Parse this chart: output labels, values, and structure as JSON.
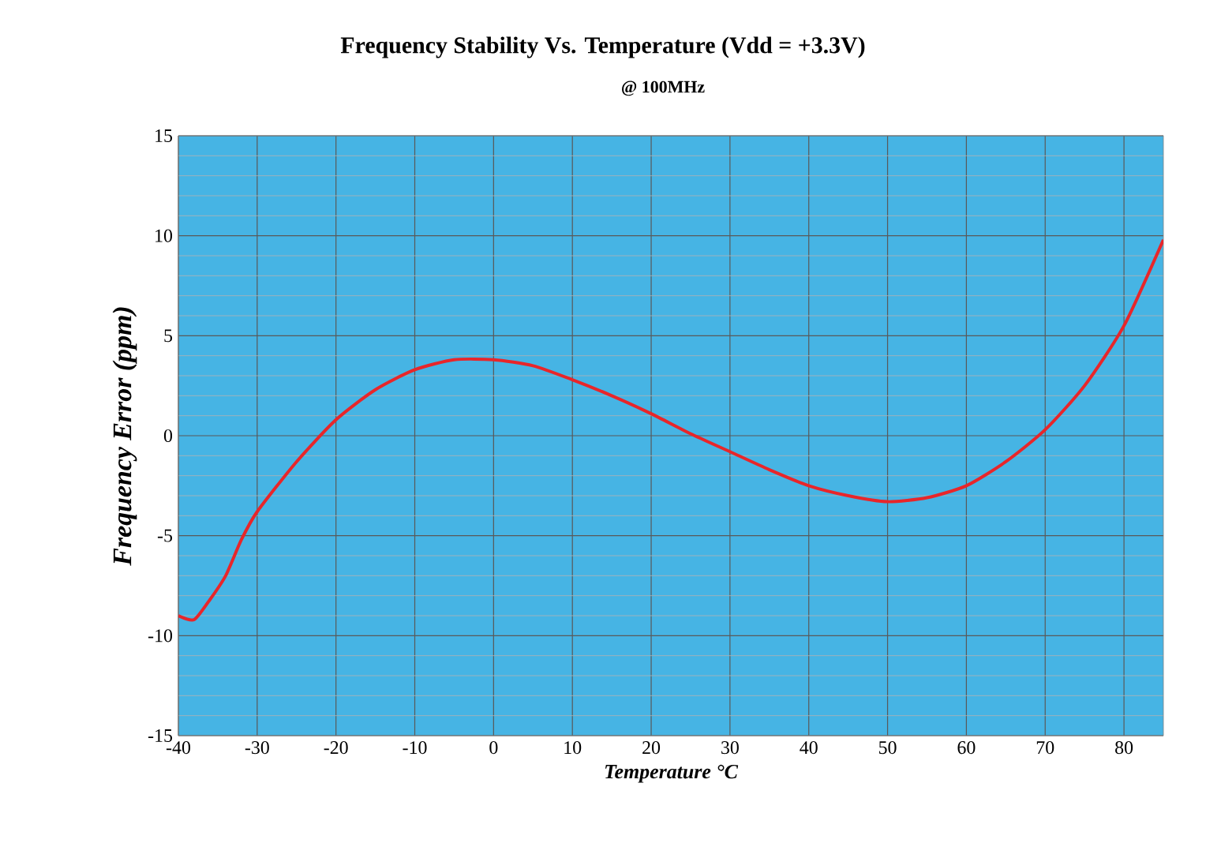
{
  "chart_data": {
    "type": "line",
    "title": "Frequency Stability Vs. Temperature  (Vdd = +3.3V)",
    "subtitle": "@ 100MHz",
    "xlabel": "Temperature °C",
    "ylabel": "Frequency Error (ppm)",
    "x": [
      -40,
      -38,
      -36,
      -34,
      -32,
      -30,
      -25,
      -20,
      -15,
      -10,
      -5,
      0,
      5,
      10,
      15,
      20,
      25,
      30,
      35,
      40,
      45,
      50,
      55,
      60,
      65,
      70,
      75,
      80,
      85
    ],
    "series": [
      {
        "color": "#e8262a",
        "values": [
          -9,
          -9.2,
          -8.2,
          -7,
          -5.2,
          -3.8,
          -1.3,
          0.8,
          2.3,
          3.3,
          3.8,
          3.8,
          3.5,
          2.8,
          2.0,
          1.1,
          0.1,
          -0.8,
          -1.7,
          -2.5,
          -3.0,
          -3.3,
          -3.1,
          -2.5,
          -1.3,
          0.3,
          2.5,
          5.5,
          9.8
        ]
      }
    ],
    "xlim": [
      -40,
      85
    ],
    "ylim": [
      -15,
      15
    ],
    "xticks": [
      -40,
      -30,
      -20,
      -10,
      0,
      10,
      20,
      30,
      40,
      50,
      60,
      70,
      80
    ],
    "yticks": [
      -15,
      -10,
      -5,
      0,
      5,
      10,
      15
    ],
    "grid": true,
    "marker": "none",
    "line_style": "solid"
  }
}
